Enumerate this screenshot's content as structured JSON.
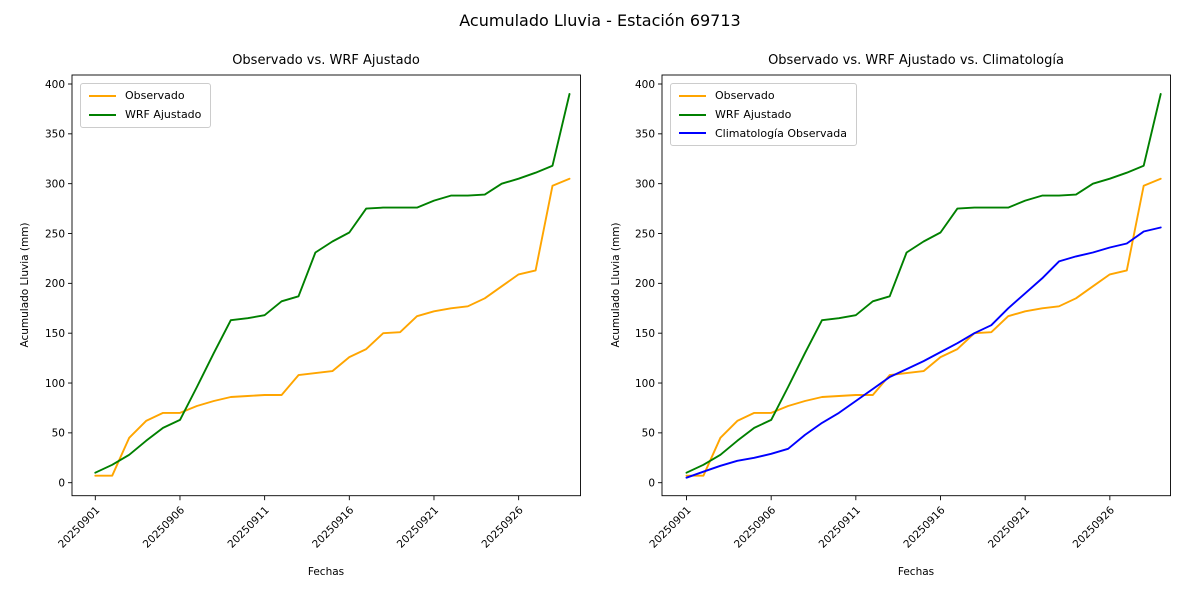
{
  "figure": {
    "title": "Acumulado Lluvia - Estación 69713",
    "background_color": "#ffffff"
  },
  "axes": {
    "ytick_labels": [
      "0",
      "50",
      "100",
      "150",
      "200",
      "250",
      "300",
      "350",
      "400"
    ],
    "ytick_values": [
      0,
      50,
      100,
      150,
      200,
      250,
      300,
      350,
      400
    ],
    "xtick_labels": [
      "20250901",
      "20250906",
      "20250911",
      "20250916",
      "20250921",
      "20250926"
    ],
    "xtick_day_indices": [
      0,
      5,
      10,
      15,
      20,
      25
    ]
  },
  "chart_data": [
    {
      "type": "line",
      "title": "Observado vs. WRF Ajustado",
      "xlabel": "Fechas",
      "ylabel": "Acumulado Lluvia (mm)",
      "x_dates": [
        "20250901",
        "20250902",
        "20250903",
        "20250904",
        "20250905",
        "20250906",
        "20250907",
        "20250908",
        "20250909",
        "20250910",
        "20250911",
        "20250912",
        "20250913",
        "20250914",
        "20250915",
        "20250916",
        "20250917",
        "20250918",
        "20250919",
        "20250920",
        "20250921",
        "20250922",
        "20250923",
        "20250924",
        "20250925",
        "20250926",
        "20250927",
        "20250928",
        "20250929"
      ],
      "ylim": [
        0,
        400
      ],
      "grid": false,
      "legend_position": "upper left",
      "series": [
        {
          "name": "Observado",
          "color": "#FFA500",
          "values": [
            7,
            7,
            45,
            62,
            70,
            70,
            77,
            82,
            86,
            87,
            88,
            88,
            108,
            110,
            112,
            126,
            134,
            150,
            151,
            167,
            172,
            175,
            177,
            185,
            197,
            209,
            213,
            298,
            305
          ]
        },
        {
          "name": "WRF Ajustado",
          "color": "#008000",
          "values": [
            10,
            18,
            28,
            42,
            55,
            63,
            96,
            130,
            163,
            165,
            168,
            182,
            187,
            231,
            242,
            251,
            275,
            276,
            276,
            276,
            283,
            288,
            288,
            289,
            300,
            305,
            311,
            318,
            390
          ]
        }
      ]
    },
    {
      "type": "line",
      "title": "Observado vs. WRF Ajustado vs. Climatología",
      "xlabel": "Fechas",
      "ylabel": "Acumulado Lluvia (mm)",
      "x_dates": [
        "20250901",
        "20250902",
        "20250903",
        "20250904",
        "20250905",
        "20250906",
        "20250907",
        "20250908",
        "20250909",
        "20250910",
        "20250911",
        "20250912",
        "20250913",
        "20250914",
        "20250915",
        "20250916",
        "20250917",
        "20250918",
        "20250919",
        "20250920",
        "20250921",
        "20250922",
        "20250923",
        "20250924",
        "20250925",
        "20250926",
        "20250927",
        "20250928",
        "20250929"
      ],
      "ylim": [
        0,
        400
      ],
      "grid": false,
      "legend_position": "upper left",
      "series": [
        {
          "name": "Observado",
          "color": "#FFA500",
          "values": [
            7,
            7,
            45,
            62,
            70,
            70,
            77,
            82,
            86,
            87,
            88,
            88,
            108,
            110,
            112,
            126,
            134,
            150,
            151,
            167,
            172,
            175,
            177,
            185,
            197,
            209,
            213,
            298,
            305
          ]
        },
        {
          "name": "WRF Ajustado",
          "color": "#008000",
          "values": [
            10,
            18,
            28,
            42,
            55,
            63,
            96,
            130,
            163,
            165,
            168,
            182,
            187,
            231,
            242,
            251,
            275,
            276,
            276,
            276,
            283,
            288,
            288,
            289,
            300,
            305,
            311,
            318,
            390
          ]
        },
        {
          "name": "Climatología Observada",
          "color": "#0000FF",
          "values": [
            5,
            11,
            17,
            22,
            25,
            29,
            34,
            48,
            60,
            70,
            82,
            94,
            106,
            114,
            122,
            131,
            140,
            150,
            158,
            175,
            190,
            205,
            222,
            227,
            231,
            236,
            240,
            252,
            256
          ]
        }
      ]
    }
  ]
}
